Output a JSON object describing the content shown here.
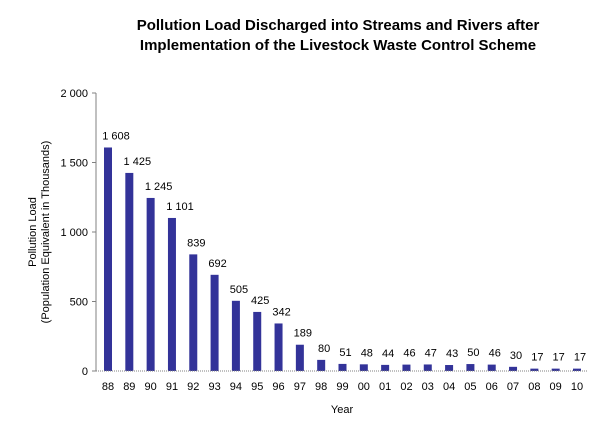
{
  "chart_data": {
    "type": "bar",
    "title": "Pollution Load Discharged into Streams and Rivers after Implementation of the Livestock Waste Control Scheme",
    "title_lines": [
      "Pollution Load Discharged into Streams and Rivers after",
      "Implementation of the Livestock Waste Control Scheme"
    ],
    "xlabel": "Year",
    "ylabel": "Pollution Load",
    "ylabel_sub": "(Population Equivalent in Thousands)",
    "ylim": [
      0,
      2000
    ],
    "yticks": [
      0,
      500,
      1000,
      1500,
      2000
    ],
    "ytick_labels": [
      "0",
      "500",
      "1 000",
      "1 500",
      "2 000"
    ],
    "grid": false,
    "legend": "none",
    "bar_color": "#333399",
    "categories": [
      "88",
      "89",
      "90",
      "91",
      "92",
      "93",
      "94",
      "95",
      "96",
      "97",
      "98",
      "99",
      "00",
      "01",
      "02",
      "03",
      "04",
      "05",
      "06",
      "07",
      "08",
      "09",
      "10"
    ],
    "values": [
      1608,
      1425,
      1245,
      1101,
      839,
      692,
      505,
      425,
      342,
      189,
      80,
      51,
      48,
      44,
      46,
      47,
      43,
      50,
      46,
      30,
      17,
      17,
      17
    ],
    "data_labels": [
      "1 608",
      "1 425",
      "1 245",
      "1 101",
      "839",
      "692",
      "505",
      "425",
      "342",
      "189",
      "80",
      "51",
      "48",
      "44",
      "46",
      "47",
      "43",
      "50",
      "46",
      "30",
      "17",
      "17",
      "17"
    ]
  }
}
